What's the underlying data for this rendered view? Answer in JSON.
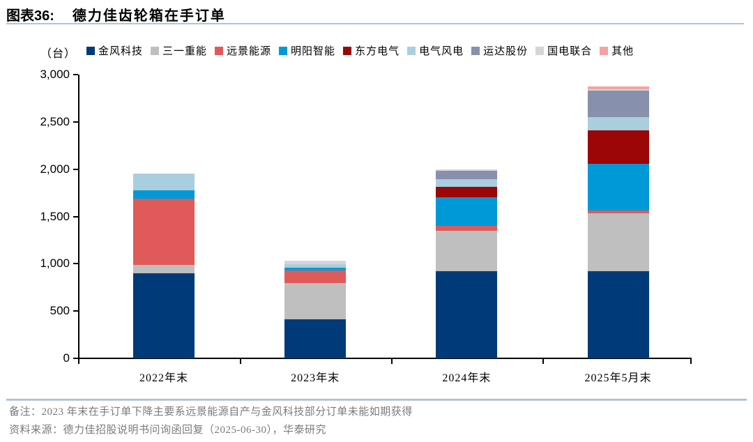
{
  "figure": {
    "label": "图表36:",
    "title": "德力佳齿轮箱在手订单"
  },
  "axis": {
    "unit": "（台）"
  },
  "chart_data": {
    "type": "bar",
    "stacked": true,
    "title": "德力佳齿轮箱在手订单",
    "ylabel": "（台）",
    "xlabel": "",
    "categories": [
      "2022年末",
      "2023年末",
      "2024年末",
      "2025年5月末"
    ],
    "series": [
      {
        "name": "金风科技",
        "color": "#003a78",
        "values": [
          900,
          410,
          920,
          920
        ]
      },
      {
        "name": "三一重能",
        "color": "#bfbfbf",
        "values": [
          90,
          385,
          430,
          610
        ]
      },
      {
        "name": "远景能源",
        "color": "#e05a5a",
        "values": [
          700,
          135,
          50,
          30
        ]
      },
      {
        "name": "明阳智能",
        "color": "#0099d8",
        "values": [
          85,
          30,
          300,
          500
        ]
      },
      {
        "name": "东方电气",
        "color": "#9c0606",
        "values": [
          0,
          0,
          115,
          350
        ]
      },
      {
        "name": "电气风电",
        "color": "#a9cede",
        "values": [
          180,
          35,
          80,
          140
        ]
      },
      {
        "name": "运达股份",
        "color": "#8791ad",
        "values": [
          0,
          0,
          85,
          280
        ]
      },
      {
        "name": "国电联合",
        "color": "#d6d6da",
        "values": [
          0,
          35,
          20,
          15
        ]
      },
      {
        "name": "其他",
        "color": "#f5a3a0",
        "values": [
          0,
          0,
          0,
          30
        ]
      }
    ],
    "ylim": [
      0,
      3000
    ],
    "ytick_values": [
      0,
      500,
      1000,
      1500,
      2000,
      2500,
      3000
    ],
    "ytick_labels": [
      "0",
      "500",
      "1,000",
      "1,500",
      "2,000",
      "2,500",
      "3,000"
    ],
    "grid": false,
    "legend_position": "top"
  },
  "notes": {
    "note": "备注：2023 年末在手订单下降主要系远景能源自产与金风科技部分订单未能如期获得",
    "source": "资料来源：德力佳招股说明书问询函回复（2025-06-30），华泰研究"
  }
}
